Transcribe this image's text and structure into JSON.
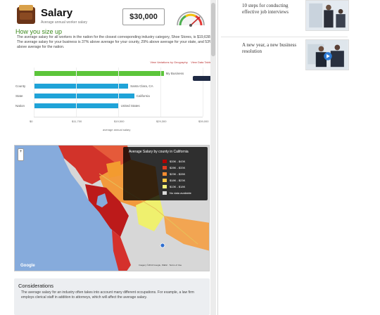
{
  "salary_card": {
    "title": "Salary",
    "subtitle": "Average annual worker salary",
    "amount": "$30,000"
  },
  "how_you_size_up": {
    "heading": "How you size up",
    "intro": "The average salary for all workers in the nation for the closest corresponding industry category, Shoe Stores, is $19,638. The average salary for your business is 37% above average for your county, 29% above average for your state, and 53% above average for the nation."
  },
  "chart_data": {
    "type": "bar",
    "orientation": "horizontal",
    "links": [
      "View Variations by Geography",
      "View Data Table"
    ],
    "categories": [
      "",
      "County",
      "State",
      "Nation"
    ],
    "series": [
      {
        "name": "",
        "values": [
          30000,
          21800,
          23200,
          19600
        ],
        "bar_labels": [
          "My Business",
          "Santa Clara, CA",
          "California",
          "United States"
        ]
      }
    ],
    "colors": [
      "#5cc53a",
      "#1fa3d8",
      "#1fa3d8",
      "#1fa3d8"
    ],
    "x_ticks": [
      "$0",
      "$11,700",
      "$19,500",
      "$29,300",
      "$39,000"
    ],
    "x_range": [
      0,
      39000
    ],
    "xlabel": "average annual salary",
    "ylabel": ""
  },
  "map": {
    "legend_title": "Average Salary by county in California",
    "legend_items": [
      {
        "label": "$33K - $43K",
        "color": "#b30000"
      },
      {
        "label": "$28K - $33K",
        "color": "#e33b20"
      },
      {
        "label": "$23K - $28K",
        "color": "#f28b30"
      },
      {
        "label": "$18K - $23K",
        "color": "#f7c744"
      },
      {
        "label": "$13K - $18K",
        "color": "#f4f27a"
      },
      {
        "label": "No data available",
        "color": "#d9d9d9"
      }
    ],
    "zoom_label": "+",
    "google_label": "Google",
    "footer": "Imagery ©2013 Google, INEGI · Terms of Use"
  },
  "considerations": {
    "title": "Considerations",
    "text": "The average salary for an industry often takes into account many different occupations. For example, a law firm employs clerical staff in addition to attorneys, which will affect the average salary."
  },
  "sidebar_articles": [
    {
      "title": "10 steps for conducting effective job interviews"
    },
    {
      "title": "A new year, a new business resolution"
    }
  ]
}
